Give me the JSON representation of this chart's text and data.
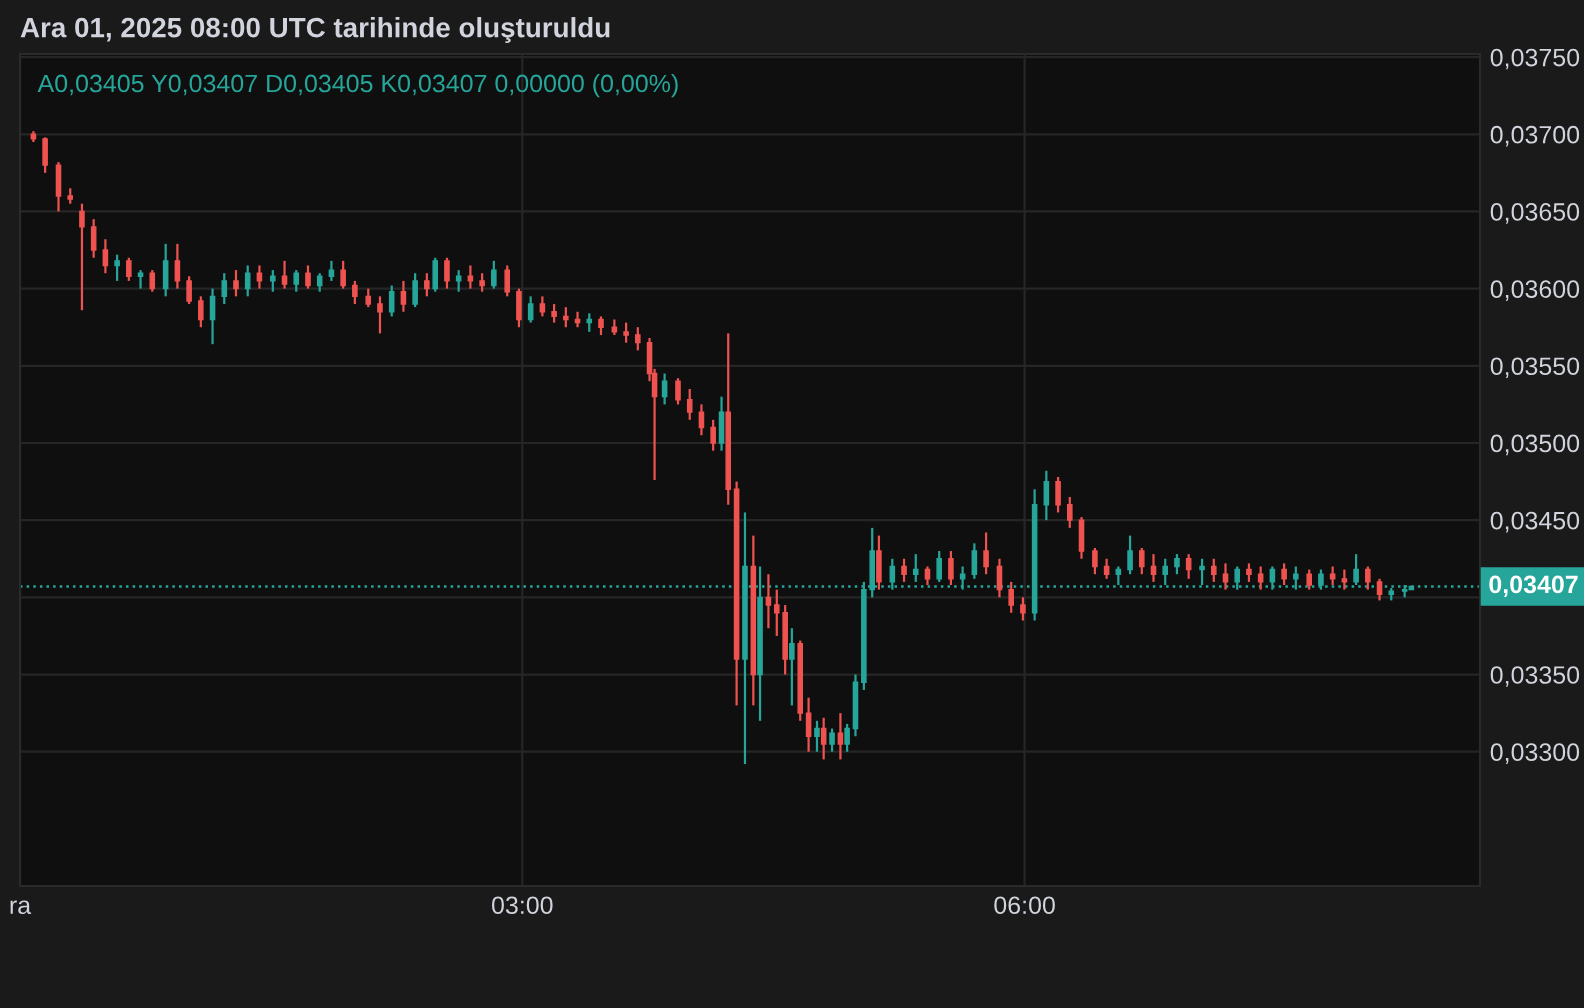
{
  "chart_data": {
    "type": "candlestick",
    "title": "Ara 01, 2025 08:00 UTC tarihinde oluşturuldu",
    "subtitle": "A0,03405 Y0,03407 D0,03405 K0,03407 0,00000 (0,00%)",
    "colors": [
      "#ef5350",
      "#ef5350",
      "#ef5350",
      "#ef5350",
      "#ef5350",
      "#ef5350",
      "#ef5350",
      "#26a69a",
      "#ef5350",
      "#26a69a",
      "#ef5350",
      "#26a69a",
      "#ef5350",
      "#ef5350",
      "#ef5350",
      "#26a69a",
      "#26a69a",
      "#ef5350",
      "#26a69a",
      "#ef5350",
      "#26a69a",
      "#ef5350",
      "#26a69a",
      "#ef5350",
      "#26a69a",
      "#26a69a",
      "#ef5350",
      "#ef5350",
      "#ef5350",
      "#ef5350",
      "#26a69a",
      "#ef5350",
      "#26a69a",
      "#ef5350",
      "#26a69a",
      "#ef5350",
      "#26a69a",
      "#ef5350",
      "#ef5350",
      "#26a69a",
      "#ef5350",
      "#ef5350",
      "#26a69a",
      "#ef5350",
      "#ef5350",
      "#ef5350",
      "#ef5350",
      "#26a69a",
      "#ef5350",
      "#ef5350",
      "#ef5350",
      "#ef5350",
      "#ef5350",
      "#ef5350",
      "#26a69a",
      "#ef5350",
      "#ef5350",
      "#ef5350",
      "#ef5350",
      "#26a69a",
      "#ef5350",
      "#ef5350",
      "#26a69a",
      "#ef5350",
      "#26a69a",
      "#ef5350",
      "#ef5350",
      "#ef5350",
      "#26a69a",
      "#ef5350",
      "#ef5350",
      "#26a69a",
      "#ef5350",
      "#26a69a",
      "#ef5350",
      "#26a69a",
      "#26a69a",
      "#26a69a",
      "#26a69a",
      "#ef5350",
      "#26a69a",
      "#ef5350",
      "#26a69a",
      "#ef5350",
      "#26a69a",
      "#ef5350",
      "#26a69a",
      "#26a69a",
      "#ef5350",
      "#ef5350",
      "#ef5350",
      "#ef5350",
      "#26a69a",
      "#26a69a",
      "#ef5350",
      "#ef5350",
      "#ef5350",
      "#ef5350",
      "#ef5350",
      "#26a69a",
      "#26a69a",
      "#ef5350",
      "#ef5350",
      "#26a69a",
      "#26a69a",
      "#ef5350",
      "#26a69a",
      "#ef5350",
      "#ef5350",
      "#26a69a",
      "#ef5350",
      "#ef5350",
      "#26a69a",
      "#ef5350",
      "#26a69a",
      "#ef5350",
      "#26a69a",
      "#ef5350",
      "#ef5350",
      "#26a69a",
      "#ef5350",
      "#ef5350",
      "#26a69a",
      "#26a69a",
      "#26a69a"
    ],
    "x": [
      0.08,
      0.15,
      0.23,
      0.3,
      0.37,
      0.44,
      0.51,
      0.58,
      0.65,
      0.72,
      0.79,
      0.87,
      0.94,
      1.01,
      1.08,
      1.15,
      1.22,
      1.29,
      1.36,
      1.43,
      1.51,
      1.58,
      1.65,
      1.72,
      1.79,
      1.86,
      1.93,
      2.0,
      2.08,
      2.15,
      2.22,
      2.29,
      2.36,
      2.43,
      2.48,
      2.55,
      2.62,
      2.69,
      2.76,
      2.83,
      2.91,
      2.98,
      3.05,
      3.12,
      3.19,
      3.26,
      3.33,
      3.4,
      3.47,
      3.55,
      3.62,
      3.69,
      3.76,
      3.79,
      3.85,
      3.93,
      4.0,
      4.07,
      4.14,
      4.19,
      4.23,
      4.28,
      4.33,
      4.38,
      4.42,
      4.47,
      4.52,
      4.57,
      4.61,
      4.66,
      4.71,
      4.76,
      4.8,
      4.85,
      4.9,
      4.94,
      4.99,
      5.04,
      5.09,
      5.13,
      5.21,
      5.28,
      5.35,
      5.42,
      5.49,
      5.56,
      5.63,
      5.7,
      5.77,
      5.85,
      5.92,
      5.99,
      6.06,
      6.13,
      6.2,
      6.27,
      6.34,
      6.42,
      6.49,
      6.56,
      6.63,
      6.7,
      6.77,
      6.84,
      6.91,
      6.98,
      7.06,
      7.13,
      7.2,
      7.27,
      7.34,
      7.41,
      7.48,
      7.55,
      7.62,
      7.7,
      7.77,
      7.84,
      7.91,
      7.98,
      8.05,
      8.12,
      8.19,
      8.27,
      8.31
    ],
    "ohlc": [
      [
        0.037,
        0.03702,
        0.03695,
        0.03697
      ],
      [
        0.03697,
        0.03698,
        0.03675,
        0.0368
      ],
      [
        0.0368,
        0.03682,
        0.0365,
        0.0366
      ],
      [
        0.0366,
        0.03665,
        0.03655,
        0.03658
      ],
      [
        0.0365,
        0.03655,
        0.03586,
        0.0364
      ],
      [
        0.0364,
        0.03645,
        0.0362,
        0.03625
      ],
      [
        0.03625,
        0.03632,
        0.0361,
        0.03615
      ],
      [
        0.03615,
        0.03622,
        0.03605,
        0.03618
      ],
      [
        0.03618,
        0.0362,
        0.03605,
        0.03608
      ],
      [
        0.03608,
        0.03612,
        0.036,
        0.0361
      ],
      [
        0.0361,
        0.03612,
        0.03598,
        0.036
      ],
      [
        0.036,
        0.03629,
        0.03595,
        0.03618
      ],
      [
        0.03618,
        0.03629,
        0.036,
        0.03605
      ],
      [
        0.03605,
        0.03608,
        0.0359,
        0.03592
      ],
      [
        0.03592,
        0.03595,
        0.03575,
        0.0358
      ],
      [
        0.0358,
        0.036,
        0.03564,
        0.03595
      ],
      [
        0.03595,
        0.0361,
        0.0359,
        0.03605
      ],
      [
        0.03605,
        0.03612,
        0.03595,
        0.036
      ],
      [
        0.036,
        0.03615,
        0.03595,
        0.0361
      ],
      [
        0.0361,
        0.03615,
        0.036,
        0.03605
      ],
      [
        0.03605,
        0.03612,
        0.03598,
        0.03608
      ],
      [
        0.03608,
        0.03618,
        0.036,
        0.03603
      ],
      [
        0.03603,
        0.03612,
        0.03598,
        0.0361
      ],
      [
        0.0361,
        0.03615,
        0.036,
        0.03602
      ],
      [
        0.03602,
        0.0361,
        0.03598,
        0.03608
      ],
      [
        0.03608,
        0.03618,
        0.03605,
        0.03612
      ],
      [
        0.03612,
        0.03618,
        0.036,
        0.03602
      ],
      [
        0.03602,
        0.03605,
        0.0359,
        0.03595
      ],
      [
        0.03595,
        0.036,
        0.03588,
        0.0359
      ],
      [
        0.0359,
        0.03595,
        0.03571,
        0.03585
      ],
      [
        0.03585,
        0.03602,
        0.03582,
        0.03598
      ],
      [
        0.03598,
        0.03605,
        0.03585,
        0.0359
      ],
      [
        0.0359,
        0.0361,
        0.03588,
        0.03605
      ],
      [
        0.03605,
        0.0361,
        0.03595,
        0.036
      ],
      [
        0.036,
        0.0362,
        0.03598,
        0.03618
      ],
      [
        0.03618,
        0.0362,
        0.036,
        0.03605
      ],
      [
        0.03605,
        0.03612,
        0.03598,
        0.03608
      ],
      [
        0.03608,
        0.03615,
        0.036,
        0.03605
      ],
      [
        0.03605,
        0.0361,
        0.03598,
        0.03602
      ],
      [
        0.03602,
        0.03618,
        0.036,
        0.03612
      ],
      [
        0.03612,
        0.03615,
        0.03595,
        0.03598
      ],
      [
        0.03598,
        0.036,
        0.03575,
        0.0358
      ],
      [
        0.0358,
        0.03595,
        0.03578,
        0.0359
      ],
      [
        0.0359,
        0.03595,
        0.03582,
        0.03585
      ],
      [
        0.03585,
        0.0359,
        0.03578,
        0.03582
      ],
      [
        0.03582,
        0.03588,
        0.03575,
        0.0358
      ],
      [
        0.0358,
        0.03585,
        0.03575,
        0.03578
      ],
      [
        0.03578,
        0.03584,
        0.03572,
        0.0358
      ],
      [
        0.0358,
        0.03582,
        0.0357,
        0.03575
      ],
      [
        0.03575,
        0.0358,
        0.0357,
        0.03572
      ],
      [
        0.03572,
        0.03578,
        0.03565,
        0.0357
      ],
      [
        0.0357,
        0.03575,
        0.0356,
        0.03565
      ],
      [
        0.03565,
        0.03568,
        0.0354,
        0.03545
      ],
      [
        0.03545,
        0.03548,
        0.03476,
        0.0353
      ],
      [
        0.0353,
        0.03545,
        0.03525,
        0.0354
      ],
      [
        0.0354,
        0.03542,
        0.03525,
        0.03528
      ],
      [
        0.03528,
        0.03535,
        0.03515,
        0.0352
      ],
      [
        0.0352,
        0.03525,
        0.03505,
        0.0351
      ],
      [
        0.0351,
        0.03515,
        0.03495,
        0.035
      ],
      [
        0.035,
        0.0353,
        0.03495,
        0.0352
      ],
      [
        0.0352,
        0.03571,
        0.0346,
        0.0347
      ],
      [
        0.0347,
        0.03475,
        0.0333,
        0.0336
      ],
      [
        0.0336,
        0.03455,
        0.03292,
        0.0342
      ],
      [
        0.0342,
        0.0344,
        0.0333,
        0.0335
      ],
      [
        0.0335,
        0.0342,
        0.0332,
        0.034
      ],
      [
        0.034,
        0.03415,
        0.0338,
        0.03395
      ],
      [
        0.03395,
        0.03405,
        0.03375,
        0.0339
      ],
      [
        0.0339,
        0.03395,
        0.0335,
        0.0336
      ],
      [
        0.0336,
        0.0338,
        0.0333,
        0.0337
      ],
      [
        0.0337,
        0.03372,
        0.0332,
        0.03325
      ],
      [
        0.03325,
        0.03335,
        0.033,
        0.0331
      ],
      [
        0.0331,
        0.0332,
        0.033,
        0.03315
      ],
      [
        0.03315,
        0.03322,
        0.03295,
        0.03305
      ],
      [
        0.03305,
        0.03315,
        0.033,
        0.03312
      ],
      [
        0.03312,
        0.03325,
        0.03295,
        0.03305
      ],
      [
        0.03305,
        0.03318,
        0.033,
        0.03315
      ],
      [
        0.03315,
        0.0335,
        0.0331,
        0.03345
      ],
      [
        0.03345,
        0.0341,
        0.0334,
        0.03405
      ],
      [
        0.03405,
        0.03445,
        0.034,
        0.0343
      ],
      [
        0.0343,
        0.0344,
        0.03405,
        0.0341
      ],
      [
        0.0341,
        0.03425,
        0.03405,
        0.0342
      ],
      [
        0.0342,
        0.03425,
        0.0341,
        0.03415
      ],
      [
        0.03415,
        0.03428,
        0.0341,
        0.03418
      ],
      [
        0.03418,
        0.0342,
        0.03408,
        0.03412
      ],
      [
        0.03412,
        0.0343,
        0.0341,
        0.03425
      ],
      [
        0.03425,
        0.0343,
        0.03408,
        0.03412
      ],
      [
        0.03412,
        0.0342,
        0.03405,
        0.03415
      ],
      [
        0.03415,
        0.03435,
        0.03412,
        0.0343
      ],
      [
        0.0343,
        0.03442,
        0.03415,
        0.0342
      ],
      [
        0.0342,
        0.03425,
        0.034,
        0.03405
      ],
      [
        0.03405,
        0.0341,
        0.0339,
        0.03395
      ],
      [
        0.03395,
        0.034,
        0.03385,
        0.0339
      ],
      [
        0.0339,
        0.0347,
        0.03385,
        0.0346
      ],
      [
        0.0346,
        0.03482,
        0.0345,
        0.03475
      ],
      [
        0.03475,
        0.03478,
        0.03455,
        0.0346
      ],
      [
        0.0346,
        0.03465,
        0.03445,
        0.0345
      ],
      [
        0.0345,
        0.03452,
        0.03425,
        0.0343
      ],
      [
        0.0343,
        0.03432,
        0.03415,
        0.0342
      ],
      [
        0.0342,
        0.03425,
        0.03412,
        0.03415
      ],
      [
        0.03415,
        0.0342,
        0.03408,
        0.03418
      ],
      [
        0.03418,
        0.0344,
        0.03415,
        0.0343
      ],
      [
        0.0343,
        0.03432,
        0.03415,
        0.0342
      ],
      [
        0.0342,
        0.03428,
        0.0341,
        0.03415
      ],
      [
        0.03415,
        0.03425,
        0.03408,
        0.0342
      ],
      [
        0.0342,
        0.03428,
        0.03415,
        0.03425
      ],
      [
        0.03425,
        0.03428,
        0.03412,
        0.03418
      ],
      [
        0.03418,
        0.03425,
        0.03408,
        0.0342
      ],
      [
        0.0342,
        0.03425,
        0.0341,
        0.03415
      ],
      [
        0.03415,
        0.03422,
        0.03405,
        0.0341
      ],
      [
        0.0341,
        0.0342,
        0.03405,
        0.03418
      ],
      [
        0.03418,
        0.03422,
        0.0341,
        0.03415
      ],
      [
        0.03415,
        0.0342,
        0.03405,
        0.0341
      ],
      [
        0.0341,
        0.0342,
        0.03405,
        0.03418
      ],
      [
        0.03418,
        0.03422,
        0.03408,
        0.03412
      ],
      [
        0.03412,
        0.0342,
        0.03405,
        0.03415
      ],
      [
        0.03415,
        0.03418,
        0.03405,
        0.03408
      ],
      [
        0.03408,
        0.03418,
        0.03405,
        0.03415
      ],
      [
        0.03415,
        0.0342,
        0.03408,
        0.03412
      ],
      [
        0.03412,
        0.03418,
        0.03405,
        0.0341
      ],
      [
        0.0341,
        0.03428,
        0.03408,
        0.03418
      ],
      [
        0.03418,
        0.0342,
        0.03405,
        0.0341
      ],
      [
        0.0341,
        0.03412,
        0.03398,
        0.03402
      ],
      [
        0.03402,
        0.03406,
        0.03398,
        0.03404
      ],
      [
        0.03404,
        0.03408,
        0.034,
        0.03405
      ],
      [
        0.03405,
        0.03407,
        0.03405,
        0.03407
      ]
    ],
    "xlim": [
      0,
      8.72
    ],
    "xticks": [
      {
        "value": 0,
        "label": "ra"
      },
      {
        "value": 3,
        "label": "03:00"
      },
      {
        "value": 6,
        "label": "06:00"
      }
    ],
    "ylim": [
      0.03213,
      0.03752
    ],
    "yticks": [
      {
        "value": 0.033,
        "label": "0,03300"
      },
      {
        "value": 0.0335,
        "label": "0,03350"
      },
      {
        "value": 0.034,
        "label": null
      },
      {
        "value": 0.0345,
        "label": "0,03450"
      },
      {
        "value": 0.035,
        "label": "0,03500"
      },
      {
        "value": 0.0355,
        "label": "0,03550"
      },
      {
        "value": 0.036,
        "label": "0,03600"
      },
      {
        "value": 0.0365,
        "label": "0,03650"
      },
      {
        "value": 0.037,
        "label": "0,03700"
      },
      {
        "value": 0.0375,
        "label": "0,03750"
      }
    ],
    "ref_lines": [
      {
        "axis": "y",
        "value": 0.03407,
        "label": "0,03407",
        "color": "#26a69a",
        "line_style": "dotted"
      }
    ],
    "grid": true
  }
}
